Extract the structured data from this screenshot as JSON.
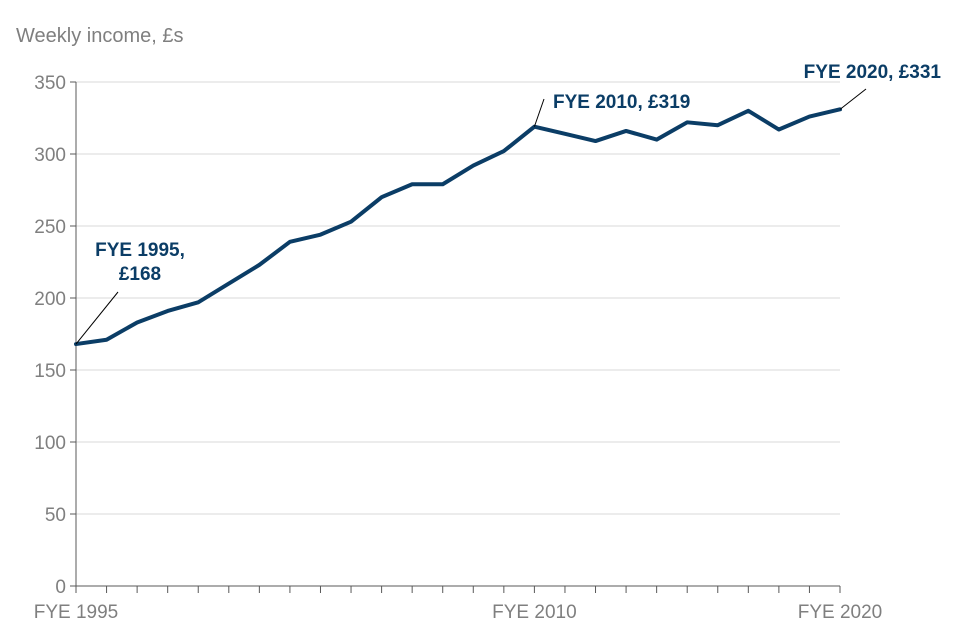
{
  "chart_data": {
    "type": "line",
    "title": "",
    "ylabel": "Weekly income, £s",
    "xlabel": "",
    "ylim": [
      0,
      350
    ],
    "yticks": [
      0,
      50,
      100,
      150,
      200,
      250,
      300,
      350
    ],
    "x_start_year": 1995,
    "x_end_year": 2020,
    "x_tick_labels": [
      {
        "year": 1995,
        "label": "FYE 1995"
      },
      {
        "year": 2010,
        "label": "FYE 2010"
      },
      {
        "year": 2020,
        "label": "FYE 2020"
      }
    ],
    "line_color": "#0b3d66",
    "grid": true,
    "series": [
      {
        "name": "Weekly income",
        "points": [
          {
            "year": 1995,
            "value": 168
          },
          {
            "year": 1996,
            "value": 171
          },
          {
            "year": 1997,
            "value": 183
          },
          {
            "year": 1998,
            "value": 191
          },
          {
            "year": 1999,
            "value": 197
          },
          {
            "year": 2000,
            "value": 210
          },
          {
            "year": 2001,
            "value": 223
          },
          {
            "year": 2002,
            "value": 239
          },
          {
            "year": 2003,
            "value": 244
          },
          {
            "year": 2004,
            "value": 253
          },
          {
            "year": 2005,
            "value": 270
          },
          {
            "year": 2006,
            "value": 279
          },
          {
            "year": 2007,
            "value": 279
          },
          {
            "year": 2008,
            "value": 292
          },
          {
            "year": 2009,
            "value": 302
          },
          {
            "year": 2010,
            "value": 319
          },
          {
            "year": 2011,
            "value": 314
          },
          {
            "year": 2012,
            "value": 309
          },
          {
            "year": 2013,
            "value": 316
          },
          {
            "year": 2014,
            "value": 310
          },
          {
            "year": 2015,
            "value": 322
          },
          {
            "year": 2016,
            "value": 320
          },
          {
            "year": 2017,
            "value": 330
          },
          {
            "year": 2018,
            "value": 317
          },
          {
            "year": 2019,
            "value": 326
          },
          {
            "year": 2020,
            "value": 331
          }
        ]
      }
    ],
    "annotations": [
      {
        "year": 1995,
        "value": 168,
        "lines": [
          "FYE 1995,",
          "£168"
        ]
      },
      {
        "year": 2010,
        "value": 319,
        "lines": [
          "FYE 2010, £319"
        ]
      },
      {
        "year": 2020,
        "value": 331,
        "lines": [
          "FYE 2020, £331"
        ]
      }
    ]
  }
}
